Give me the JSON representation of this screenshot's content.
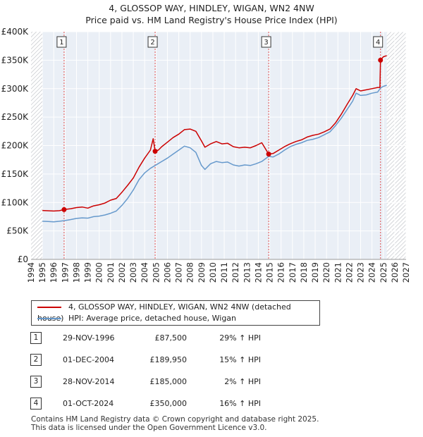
{
  "title_line1": "4, GLOSSOP WAY, HINDLEY, WIGAN, WN2 4NW",
  "title_line2": "Price paid vs. HM Land Registry's House Price Index (HPI)",
  "chart_data": {
    "type": "line",
    "x_range": [
      1994,
      2027
    ],
    "ylim": [
      0,
      400000
    ],
    "y_ticks": [
      0,
      50000,
      100000,
      150000,
      200000,
      250000,
      300000,
      350000,
      400000
    ],
    "y_tick_labels": [
      "£0",
      "£50K",
      "£100K",
      "£150K",
      "£200K",
      "£250K",
      "£300K",
      "£350K",
      "£400K"
    ],
    "x_ticks": [
      1994,
      1995,
      1996,
      1997,
      1998,
      1999,
      2000,
      2001,
      2002,
      2003,
      2004,
      2005,
      2006,
      2007,
      2008,
      2009,
      2010,
      2011,
      2012,
      2013,
      2014,
      2015,
      2016,
      2017,
      2018,
      2019,
      2020,
      2021,
      2022,
      2023,
      2024,
      2025,
      2026,
      2027
    ],
    "data_end_year": 2025.3,
    "series": [
      {
        "name": "4, GLOSSOP WAY, HINDLEY, WIGAN, WN2 4NW (detached house)",
        "color": "#cc0000",
        "points": [
          [
            1995.0,
            86000
          ],
          [
            1995.5,
            85500
          ],
          [
            1996.0,
            85000
          ],
          [
            1996.5,
            85600
          ],
          [
            1996.91,
            87500
          ],
          [
            1997.5,
            89000
          ],
          [
            1998.0,
            91000
          ],
          [
            1998.5,
            92000
          ],
          [
            1999.0,
            90000
          ],
          [
            1999.5,
            94000
          ],
          [
            2000.0,
            96000
          ],
          [
            2000.5,
            99000
          ],
          [
            2001.0,
            104000
          ],
          [
            2001.5,
            107000
          ],
          [
            2002.0,
            118000
          ],
          [
            2002.5,
            130000
          ],
          [
            2003.0,
            143000
          ],
          [
            2003.5,
            162000
          ],
          [
            2004.0,
            178000
          ],
          [
            2004.5,
            192000
          ],
          [
            2004.75,
            212000
          ],
          [
            2004.92,
            189950
          ],
          [
            2005.2,
            192000
          ],
          [
            2005.5,
            198000
          ],
          [
            2006.0,
            206000
          ],
          [
            2006.5,
            214000
          ],
          [
            2007.0,
            220000
          ],
          [
            2007.5,
            228000
          ],
          [
            2008.0,
            229000
          ],
          [
            2008.5,
            225000
          ],
          [
            2009.0,
            208000
          ],
          [
            2009.3,
            197000
          ],
          [
            2009.8,
            203000
          ],
          [
            2010.3,
            207000
          ],
          [
            2010.8,
            203000
          ],
          [
            2011.3,
            204000
          ],
          [
            2011.8,
            198000
          ],
          [
            2012.3,
            196000
          ],
          [
            2012.8,
            197000
          ],
          [
            2013.3,
            196000
          ],
          [
            2013.8,
            200000
          ],
          [
            2014.3,
            205000
          ],
          [
            2014.91,
            185000
          ],
          [
            2015.3,
            186000
          ],
          [
            2015.8,
            192000
          ],
          [
            2016.3,
            198000
          ],
          [
            2016.8,
            203000
          ],
          [
            2017.3,
            207000
          ],
          [
            2017.8,
            210000
          ],
          [
            2018.3,
            215000
          ],
          [
            2018.8,
            218000
          ],
          [
            2019.3,
            220000
          ],
          [
            2019.8,
            224000
          ],
          [
            2020.3,
            229000
          ],
          [
            2020.8,
            240000
          ],
          [
            2021.3,
            255000
          ],
          [
            2021.8,
            272000
          ],
          [
            2022.3,
            288000
          ],
          [
            2022.6,
            300000
          ],
          [
            2023.0,
            296000
          ],
          [
            2023.5,
            298000
          ],
          [
            2024.0,
            300000
          ],
          [
            2024.5,
            302000
          ],
          [
            2024.7,
            302000
          ],
          [
            2024.75,
            350000
          ],
          [
            2025.0,
            356000
          ],
          [
            2025.3,
            358000
          ]
        ]
      },
      {
        "name": "HPI: Average price, detached house, Wigan",
        "color": "#6699cc",
        "points": [
          [
            1995.0,
            67000
          ],
          [
            1995.5,
            66500
          ],
          [
            1996.0,
            66000
          ],
          [
            1996.5,
            67000
          ],
          [
            1996.91,
            68000
          ],
          [
            1997.5,
            70000
          ],
          [
            1998.0,
            72000
          ],
          [
            1998.5,
            73000
          ],
          [
            1999.0,
            72500
          ],
          [
            1999.5,
            75000
          ],
          [
            2000.0,
            76000
          ],
          [
            2000.5,
            78000
          ],
          [
            2001.0,
            81000
          ],
          [
            2001.5,
            85000
          ],
          [
            2002.0,
            95000
          ],
          [
            2002.5,
            107000
          ],
          [
            2003.0,
            122000
          ],
          [
            2003.5,
            140000
          ],
          [
            2004.0,
            152000
          ],
          [
            2004.5,
            160000
          ],
          [
            2004.92,
            165000
          ],
          [
            2005.5,
            172000
          ],
          [
            2006.0,
            178000
          ],
          [
            2006.5,
            185000
          ],
          [
            2007.0,
            192000
          ],
          [
            2007.5,
            199000
          ],
          [
            2008.0,
            196000
          ],
          [
            2008.5,
            188000
          ],
          [
            2009.0,
            165000
          ],
          [
            2009.3,
            158000
          ],
          [
            2009.8,
            168000
          ],
          [
            2010.3,
            172000
          ],
          [
            2010.8,
            170000
          ],
          [
            2011.3,
            171000
          ],
          [
            2011.8,
            166000
          ],
          [
            2012.3,
            164000
          ],
          [
            2012.8,
            166000
          ],
          [
            2013.3,
            165000
          ],
          [
            2013.8,
            168000
          ],
          [
            2014.3,
            172000
          ],
          [
            2014.91,
            181000
          ],
          [
            2015.3,
            180000
          ],
          [
            2015.8,
            185000
          ],
          [
            2016.3,
            192000
          ],
          [
            2016.8,
            198000
          ],
          [
            2017.3,
            202000
          ],
          [
            2017.8,
            205000
          ],
          [
            2018.3,
            209000
          ],
          [
            2018.8,
            211000
          ],
          [
            2019.3,
            214000
          ],
          [
            2019.8,
            219000
          ],
          [
            2020.3,
            224000
          ],
          [
            2020.8,
            235000
          ],
          [
            2021.3,
            248000
          ],
          [
            2021.8,
            263000
          ],
          [
            2022.3,
            278000
          ],
          [
            2022.6,
            292000
          ],
          [
            2023.0,
            288000
          ],
          [
            2023.5,
            289000
          ],
          [
            2024.0,
            292000
          ],
          [
            2024.5,
            294000
          ],
          [
            2024.75,
            301000
          ],
          [
            2025.0,
            304000
          ],
          [
            2025.3,
            306000
          ]
        ]
      }
    ],
    "sales": [
      {
        "label": "1",
        "x": 1996.91,
        "price": 87500
      },
      {
        "label": "2",
        "x": 2004.92,
        "price": 189950
      },
      {
        "label": "3",
        "x": 2014.91,
        "price": 185000
      },
      {
        "label": "4",
        "x": 2024.75,
        "price": 350000
      }
    ]
  },
  "legend": {
    "property": "4, GLOSSOP WAY, HINDLEY, WIGAN, WN2 4NW (detached house)",
    "hpi": "HPI: Average price, detached house, Wigan"
  },
  "transactions": [
    {
      "num": "1",
      "date": "29-NOV-1996",
      "price": "£87,500",
      "hpi": "29% ↑ HPI"
    },
    {
      "num": "2",
      "date": "01-DEC-2004",
      "price": "£189,950",
      "hpi": "15% ↑ HPI"
    },
    {
      "num": "3",
      "date": "28-NOV-2014",
      "price": "£185,000",
      "hpi": "2% ↑ HPI"
    },
    {
      "num": "4",
      "date": "01-OCT-2024",
      "price": "£350,000",
      "hpi": "16% ↑ HPI"
    }
  ],
  "footer_line1": "Contains HM Land Registry data © Crown copyright and database right 2025.",
  "footer_line2": "This data is licensed under the Open Government Licence v3.0."
}
